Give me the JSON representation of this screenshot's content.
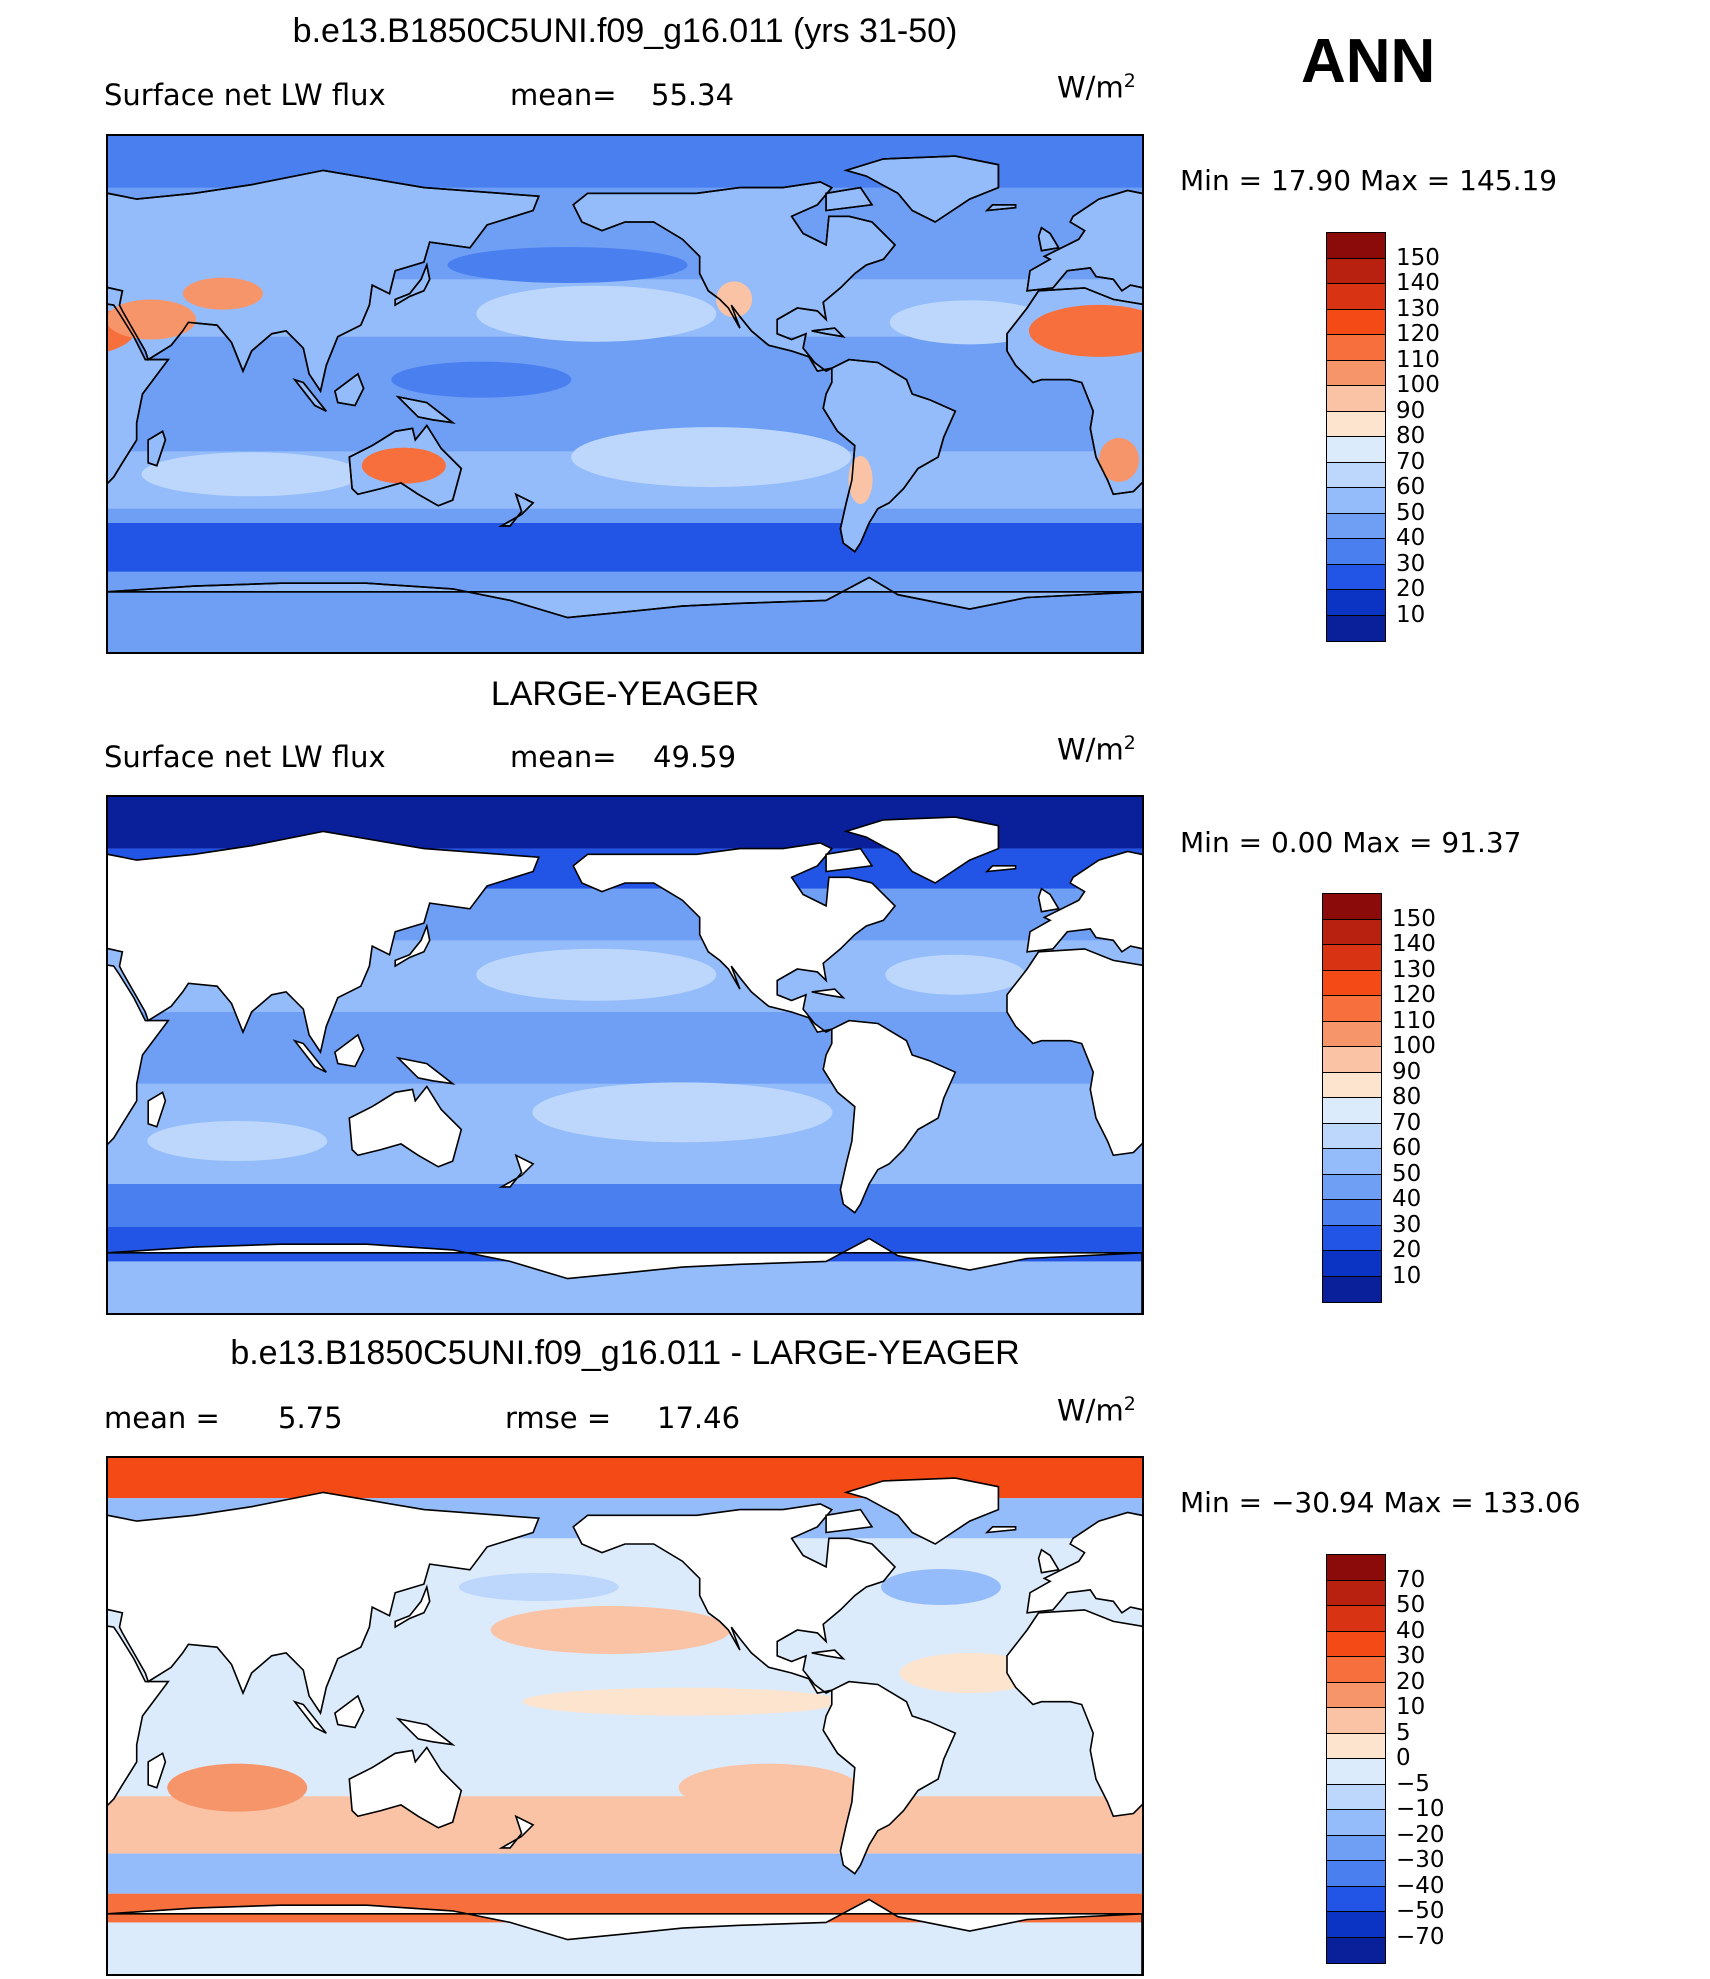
{
  "season": "ANN",
  "units_base": "W/m",
  "units_exp": "2",
  "panels": [
    {
      "title": "b.e13.B1850C5UNI.f09_g16.011 (yrs 31-50)",
      "left_label": "Surface net LW flux",
      "stat1_label": "mean=",
      "stat1_value": "55.34",
      "stat2_label": "",
      "stat2_value": "",
      "minmax": "Min =  17.90 Max = 145.19",
      "levels": [
        "150",
        "140",
        "130",
        "120",
        "110",
        "100",
        "90",
        "80",
        "70",
        "60",
        "50",
        "40",
        "30",
        "20",
        "10"
      ],
      "colors": [
        "#8b0a0a",
        "#b82010",
        "#d83414",
        "#f44a16",
        "#f66f3c",
        "#f7956a",
        "#fbc3a6",
        "#fde4cf",
        "#dcebfb",
        "#bcd7fb",
        "#94bcfa",
        "#6e9ff5",
        "#4a7ff0",
        "#2254e6",
        "#0b33c4",
        "#0a1f9a"
      ],
      "field": "model"
    },
    {
      "title": "LARGE-YEAGER",
      "left_label": "Surface net LW flux",
      "stat1_label": "mean=",
      "stat1_value": "49.59",
      "stat2_label": "",
      "stat2_value": "",
      "minmax": "Min =   0.00 Max =  91.37",
      "levels": [
        "150",
        "140",
        "130",
        "120",
        "110",
        "100",
        "90",
        "80",
        "70",
        "60",
        "50",
        "40",
        "30",
        "20",
        "10"
      ],
      "colors": [
        "#8b0a0a",
        "#b82010",
        "#d83414",
        "#f44a16",
        "#f66f3c",
        "#f7956a",
        "#fbc3a6",
        "#fde4cf",
        "#dcebfb",
        "#bcd7fb",
        "#94bcfa",
        "#6e9ff5",
        "#4a7ff0",
        "#2254e6",
        "#0b33c4",
        "#0a1f9a"
      ],
      "field": "obs"
    },
    {
      "title": "b.e13.B1850C5UNI.f09_g16.011 - LARGE-YEAGER",
      "left_label": "mean =",
      "stat1_label": "",
      "stat1_value": "5.75",
      "stat2_label": "rmse =",
      "stat2_value": "17.46",
      "minmax": "Min = −30.94 Max = 133.06",
      "levels": [
        "70",
        "50",
        "40",
        "30",
        "20",
        "10",
        "5",
        "0",
        "−5",
        "−10",
        "−20",
        "−30",
        "−40",
        "−50",
        "−70"
      ],
      "colors": [
        "#8b0a0a",
        "#b82010",
        "#d83414",
        "#f44a16",
        "#f66f3c",
        "#f7956a",
        "#fbc3a6",
        "#fde4cf",
        "#dcebfb",
        "#bcd7fb",
        "#94bcfa",
        "#6e9ff5",
        "#4a7ff0",
        "#2254e6",
        "#0b33c4",
        "#0a1f9a"
      ],
      "field": "diff"
    }
  ]
}
